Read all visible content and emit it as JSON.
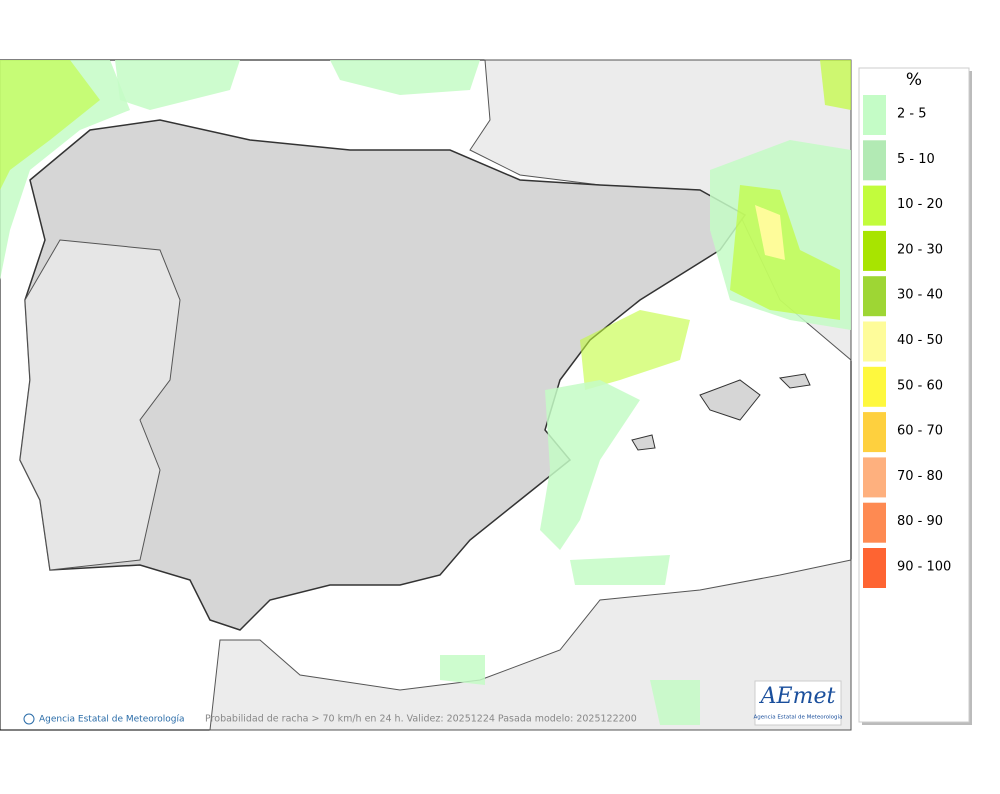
{
  "legend": {
    "title": "%",
    "items": [
      {
        "label": "2 - 5",
        "color": "#c4fcc6"
      },
      {
        "label": "5 - 10",
        "color": "#b2eab4"
      },
      {
        "label": "10 - 20",
        "color": "#c2fc3c"
      },
      {
        "label": "20 - 30",
        "color": "#a8e400"
      },
      {
        "label": "30 - 40",
        "color": "#9ed634"
      },
      {
        "label": "40 - 50",
        "color": "#fefc9a"
      },
      {
        "label": "50 - 60",
        "color": "#fef83e"
      },
      {
        "label": "60 - 70",
        "color": "#fed03e"
      },
      {
        "label": "70 - 80",
        "color": "#feb07e"
      },
      {
        "label": "80 - 90",
        "color": "#fe8a52"
      },
      {
        "label": "90 - 100",
        "color": "#fe6432"
      }
    ]
  },
  "footer": {
    "credit": "Agencia Estatal de Meteorología",
    "caption": "Probabilidad de racha > 70 km/h en 24 h. Validez: 20251224 Pasada modelo: 2025122200"
  },
  "logo": {
    "text": "AEmet",
    "subtitle": "Agencia Estatal de Meteorología"
  }
}
